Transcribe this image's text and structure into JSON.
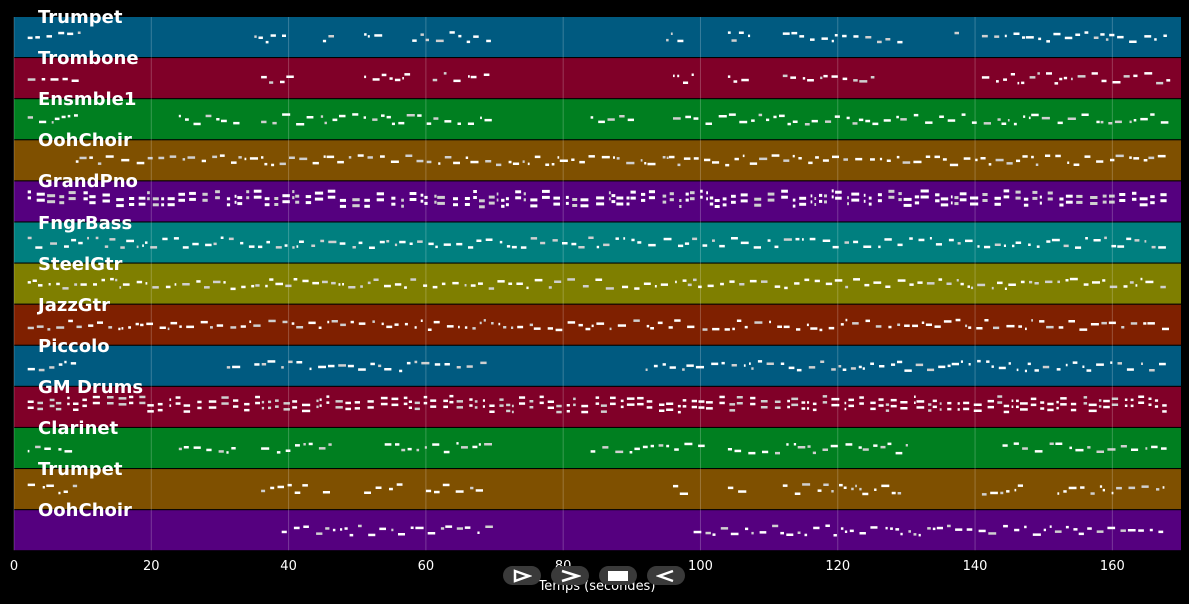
{
  "tracks": [
    {
      "name": "Trumpet",
      "color": "#005a80"
    },
    {
      "name": "Trombone",
      "color": "#800028"
    },
    {
      "name": "Ensmble1",
      "color": "#007f20"
    },
    {
      "name": "OohChoir",
      "color": "#7f5000"
    },
    {
      "name": "GrandPno",
      "color": "#55007f"
    },
    {
      "name": "FngrBass",
      "color": "#007f7f"
    },
    {
      "name": "SteelGtr",
      "color": "#7f7f00"
    },
    {
      "name": "JazzGtr",
      "color": "#7f2000"
    },
    {
      "name": "Piccolo",
      "color": "#005a80"
    },
    {
      "name": "GM Drums",
      "color": "#800028"
    },
    {
      "name": "Clarinet",
      "color": "#007f20"
    },
    {
      "name": "Trumpet",
      "color": "#7f5000"
    },
    {
      "name": "OohChoir",
      "color": "#55007f"
    }
  ],
  "axis": {
    "xlabel": "Temps (secondes)",
    "xlim": [
      0,
      170
    ],
    "ticks": [
      0,
      20,
      40,
      60,
      80,
      100,
      120,
      140,
      160
    ]
  },
  "controls": [
    {
      "name": "play-icon",
      "glyph": "play"
    },
    {
      "name": "fast-forward-icon",
      "glyph": "forward"
    },
    {
      "name": "stop-icon",
      "glyph": "stop"
    },
    {
      "name": "rewind-icon",
      "glyph": "rewind"
    }
  ]
}
